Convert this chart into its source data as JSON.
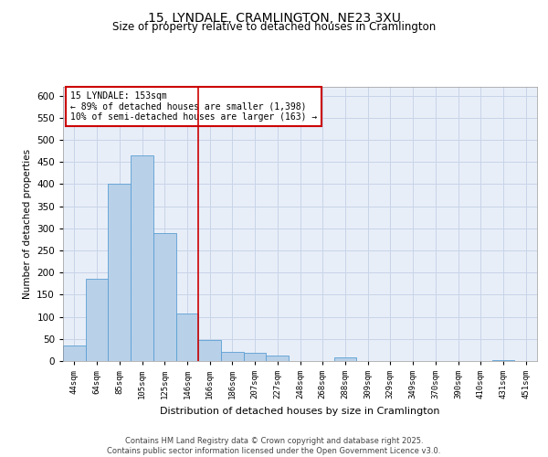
{
  "title_line1": "15, LYNDALE, CRAMLINGTON, NE23 3XU",
  "title_line2": "Size of property relative to detached houses in Cramlington",
  "xlabel": "Distribution of detached houses by size in Cramlington",
  "ylabel": "Number of detached properties",
  "bin_labels": [
    "44sqm",
    "64sqm",
    "85sqm",
    "105sqm",
    "125sqm",
    "146sqm",
    "166sqm",
    "186sqm",
    "207sqm",
    "227sqm",
    "248sqm",
    "268sqm",
    "288sqm",
    "309sqm",
    "329sqm",
    "349sqm",
    "370sqm",
    "390sqm",
    "410sqm",
    "431sqm",
    "451sqm"
  ],
  "bar_values": [
    35,
    185,
    400,
    465,
    290,
    108,
    48,
    20,
    18,
    12,
    0,
    0,
    8,
    0,
    0,
    0,
    0,
    0,
    0,
    2,
    0
  ],
  "bar_color": "#b8d0e8",
  "bar_edge_color": "#5a9fd4",
  "vline_x": 5.5,
  "vline_color": "#cc0000",
  "annotation_text": "15 LYNDALE: 153sqm\n← 89% of detached houses are smaller (1,398)\n10% of semi-detached houses are larger (163) →",
  "annotation_box_color": "#ffffff",
  "annotation_box_edge": "#cc0000",
  "ylim": [
    0,
    620
  ],
  "yticks": [
    0,
    50,
    100,
    150,
    200,
    250,
    300,
    350,
    400,
    450,
    500,
    550,
    600
  ],
  "grid_color": "#c8d4e8",
  "background_color": "#e8eef8",
  "footer_text": "Contains HM Land Registry data © Crown copyright and database right 2025.\nContains public sector information licensed under the Open Government Licence v3.0.",
  "fig_bg_color": "#ffffff"
}
